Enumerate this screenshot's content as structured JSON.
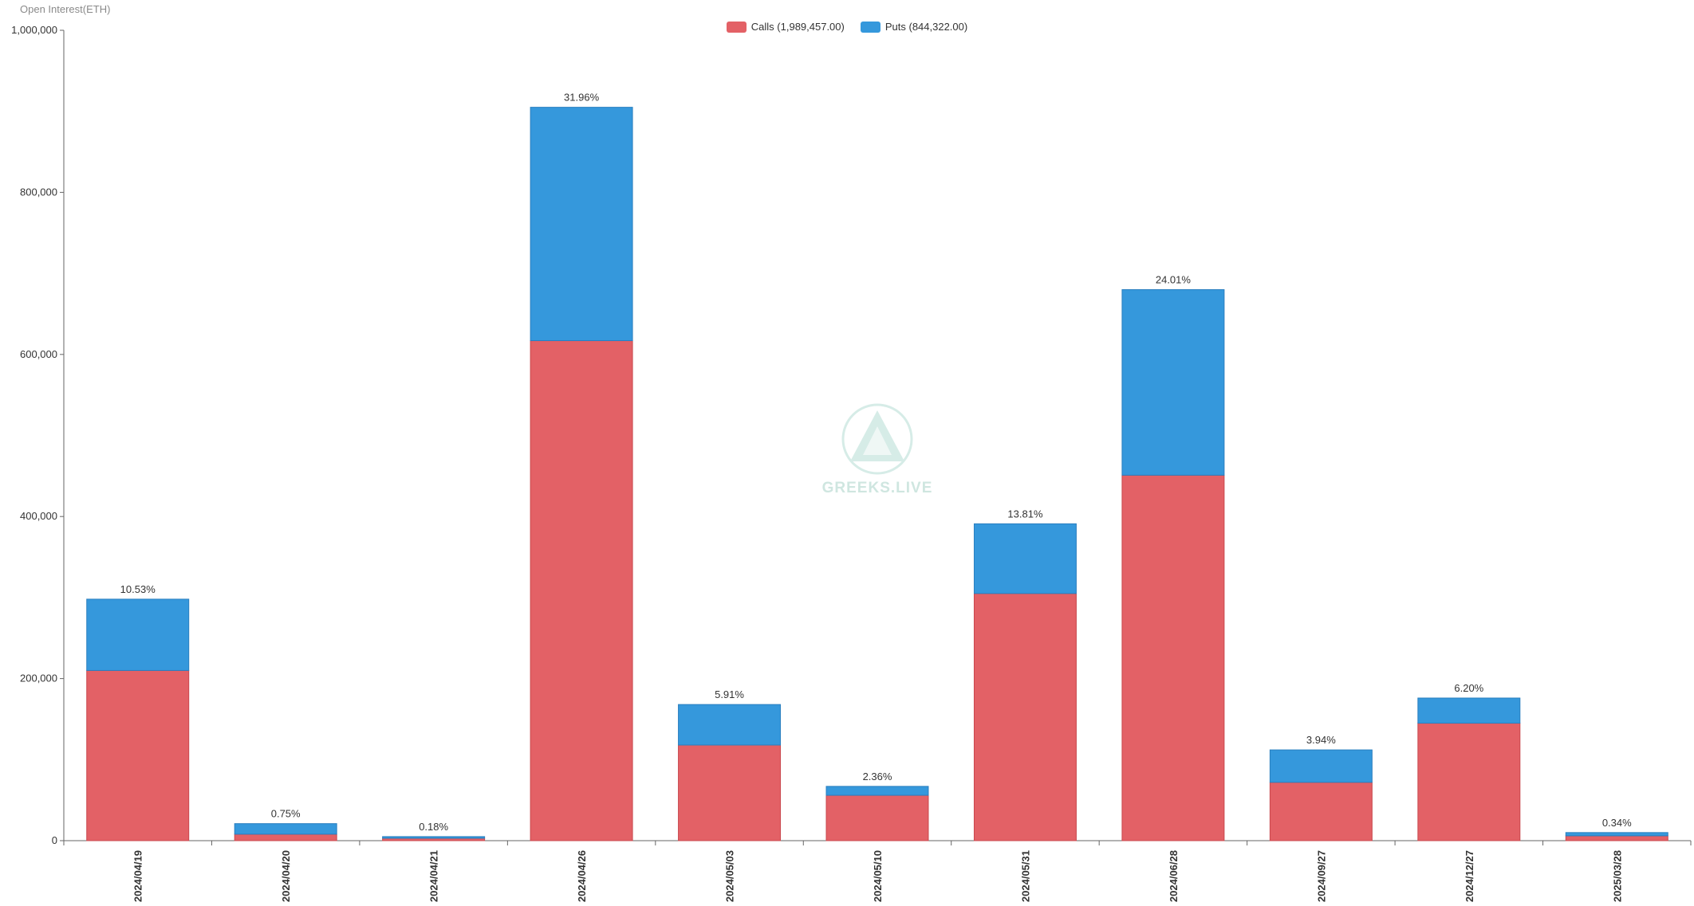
{
  "chart_data": {
    "type": "bar",
    "stacked": true,
    "unit_label": "Open Interest(ETH)",
    "categories": [
      "2024/04/19",
      "2024/04/20",
      "2024/04/21",
      "2024/04/26",
      "2024/05/03",
      "2024/05/10",
      "2024/05/31",
      "2024/06/28",
      "2024/09/27",
      "2024/12/27",
      "2025/03/28"
    ],
    "series": [
      {
        "name": "Calls (1,989,457.00)",
        "color": "#e36166",
        "values": [
          210000,
          8000,
          3000,
          617000,
          118000,
          56000,
          305000,
          451000,
          72000,
          145000,
          6000
        ]
      },
      {
        "name": "Puts (844,322.00)",
        "color": "#3598dc",
        "values": [
          88000,
          13000,
          2000,
          288000,
          50000,
          11000,
          86000,
          229000,
          40000,
          31000,
          4000
        ]
      }
    ],
    "data_labels": [
      "10.53%",
      "0.75%",
      "0.18%",
      "31.96%",
      "5.91%",
      "2.36%",
      "13.81%",
      "24.01%",
      "3.94%",
      "6.20%",
      "0.34%"
    ],
    "ylim": [
      0,
      1000000
    ],
    "yticks": [
      0,
      200000,
      400000,
      600000,
      800000,
      1000000
    ],
    "ytick_labels": [
      "0",
      "200,000",
      "400,000",
      "600,000",
      "800,000",
      "1,000,000"
    ],
    "grid": false,
    "legend_position": "top-center"
  },
  "watermark": {
    "text": "GREEKS.LIVE",
    "icon": "greeks-live-logo-icon"
  }
}
